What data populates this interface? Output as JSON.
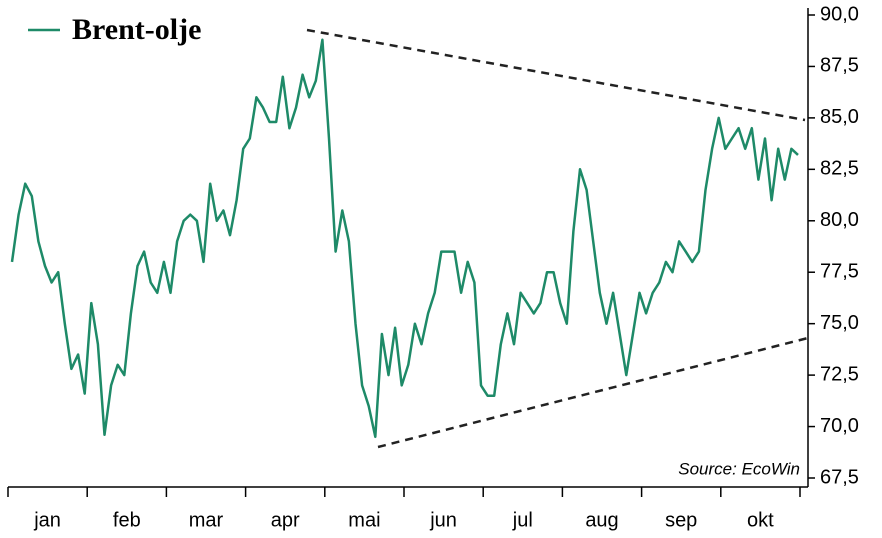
{
  "chart_data": {
    "type": "line",
    "title": "Brent-olje",
    "source": "Source: EcoWin",
    "month_labels": [
      "jan",
      "feb",
      "mar",
      "apr",
      "mai",
      "jun",
      "jul",
      "aug",
      "sep",
      "okt"
    ],
    "series": [
      {
        "name": "Brent-olje",
        "color": "#1e8a68",
        "values": [
          78.0,
          80.3,
          81.8,
          81.2,
          79.0,
          77.8,
          77.0,
          77.5,
          75.0,
          72.8,
          73.5,
          71.6,
          76.0,
          74.0,
          69.6,
          72.0,
          73.0,
          72.5,
          75.5,
          77.8,
          78.5,
          77.0,
          76.5,
          78.0,
          76.5,
          79.0,
          80.0,
          80.3,
          80.0,
          78.0,
          81.8,
          80.0,
          80.5,
          79.3,
          81.0,
          83.5,
          84.0,
          86.0,
          85.5,
          84.8,
          84.8,
          87.0,
          84.5,
          85.5,
          87.1,
          86.0,
          86.8,
          88.8,
          84.0,
          78.5,
          80.5,
          79.0,
          75.0,
          72.0,
          71.0,
          69.5,
          74.5,
          72.5,
          74.8,
          72.0,
          73.0,
          75.0,
          74.0,
          75.5,
          76.5,
          78.5,
          78.5,
          78.5,
          76.5,
          78.0,
          77.0,
          72.0,
          71.5,
          71.5,
          74.0,
          75.5,
          74.0,
          76.5,
          76.0,
          75.5,
          76.0,
          77.5,
          77.5,
          76.0,
          75.0,
          79.5,
          82.5,
          81.5,
          79.0,
          76.5,
          75.0,
          76.5,
          74.5,
          72.5,
          74.5,
          76.5,
          75.5,
          76.5,
          77.0,
          78.0,
          77.5,
          79.0,
          78.5,
          78.0,
          78.5,
          81.5,
          83.5,
          85.0,
          83.5,
          84.0,
          84.5,
          83.5,
          84.5,
          82.0,
          84.0,
          81.0,
          83.5,
          82.0,
          83.5,
          83.2
        ]
      }
    ],
    "ylim": [
      67.5,
      90
    ],
    "yticks": [
      {
        "value": 67.5,
        "label": "67,5"
      },
      {
        "value": 70,
        "label": "70,0"
      },
      {
        "value": 72.5,
        "label": "72,5"
      },
      {
        "value": 75,
        "label": "75,0"
      },
      {
        "value": 77.5,
        "label": "77,5"
      },
      {
        "value": 80,
        "label": "80,0"
      },
      {
        "value": 82.5,
        "label": "82,5"
      },
      {
        "value": 85,
        "label": "85,0"
      },
      {
        "value": 87.5,
        "label": "87,5"
      },
      {
        "value": 90,
        "label": "90,0"
      }
    ]
  }
}
